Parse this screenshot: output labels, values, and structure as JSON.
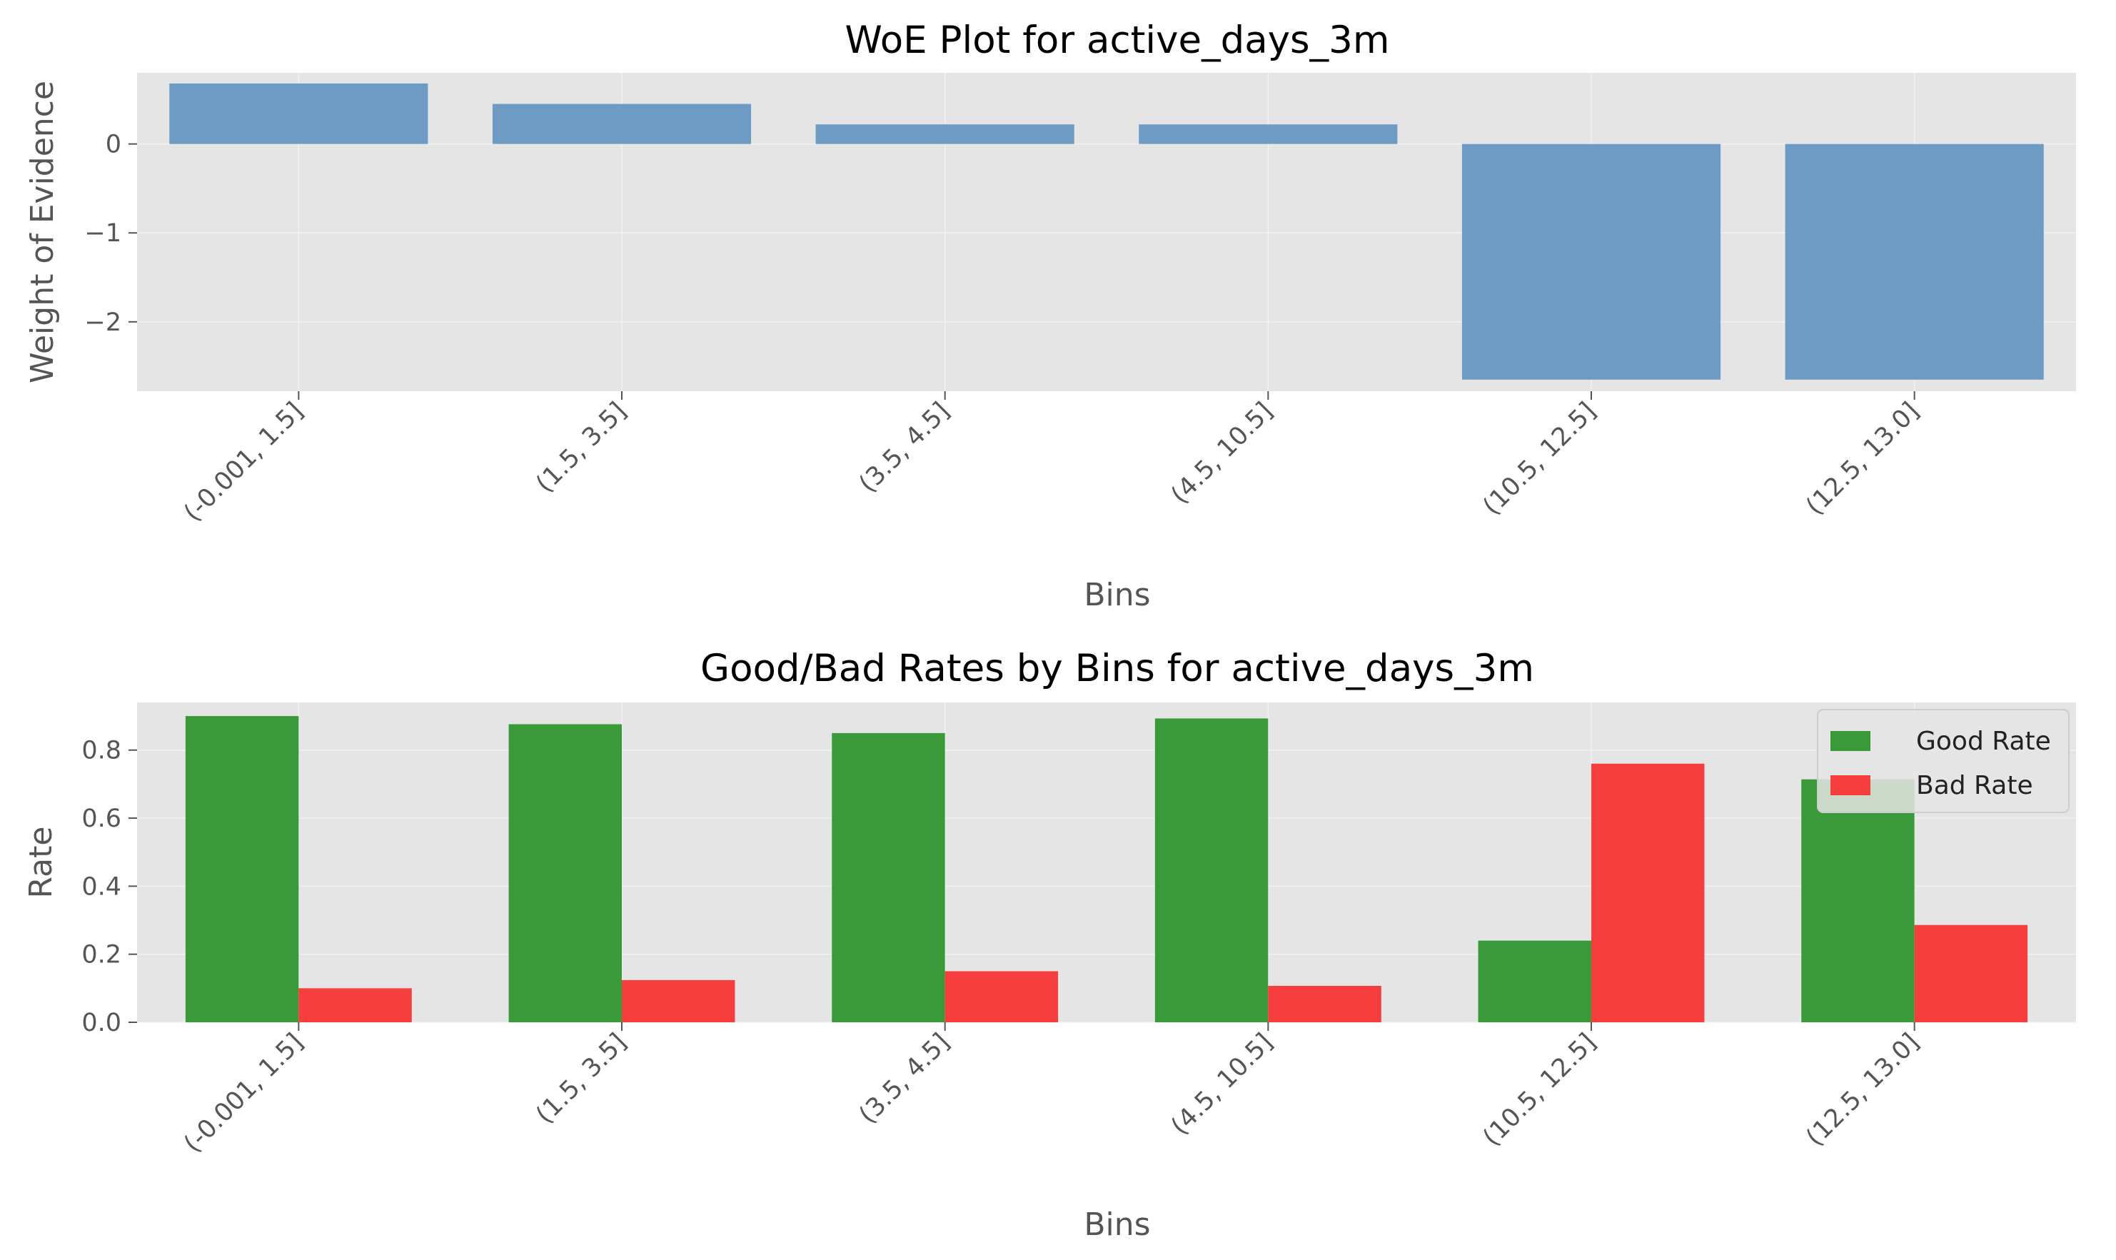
{
  "chart_data": [
    {
      "type": "bar",
      "title": "WoE Plot for active_days_3m",
      "xlabel": "Bins",
      "ylabel": "Weight of Evidence",
      "categories": [
        "(-0.001, 1.5]",
        "(1.5, 3.5]",
        "(3.5, 4.5]",
        "(4.5, 10.5]",
        "(10.5, 12.5]",
        "(12.5, 13.0]"
      ],
      "values": [
        0.68,
        0.45,
        0.22,
        0.22,
        -2.65,
        -2.65
      ],
      "ylim": [
        -2.78,
        0.8
      ],
      "yticks": [
        0,
        -1,
        -2
      ],
      "ytick_labels": [
        "0",
        "−1",
        "−2"
      ],
      "grid": true,
      "colors": {
        "bar": "#6d9bc3",
        "background": "#e5e5e5",
        "grid": "#f2f2f2"
      }
    },
    {
      "type": "bar",
      "title": "Good/Bad Rates by Bins for active_days_3m",
      "xlabel": "Bins",
      "ylabel": "Rate",
      "categories": [
        "(-0.001, 1.5]",
        "(1.5, 3.5]",
        "(3.5, 4.5]",
        "(4.5, 10.5]",
        "(10.5, 12.5]",
        "(12.5, 13.0]"
      ],
      "series": [
        {
          "name": "Good Rate",
          "values": [
            0.9,
            0.876,
            0.85,
            0.893,
            0.24,
            0.714
          ],
          "color": "#3a9a3a"
        },
        {
          "name": "Bad Rate",
          "values": [
            0.1,
            0.124,
            0.15,
            0.107,
            0.76,
            0.286
          ],
          "color": "#f63e3e"
        }
      ],
      "ylim": [
        0,
        0.94
      ],
      "yticks": [
        0.0,
        0.2,
        0.4,
        0.6,
        0.8
      ],
      "ytick_labels": [
        "0.0",
        "0.2",
        "0.4",
        "0.6",
        "0.8"
      ],
      "legend": "top-right",
      "grid": true,
      "colors": {
        "background": "#e5e5e5",
        "grid": "#f2f2f2"
      }
    }
  ]
}
